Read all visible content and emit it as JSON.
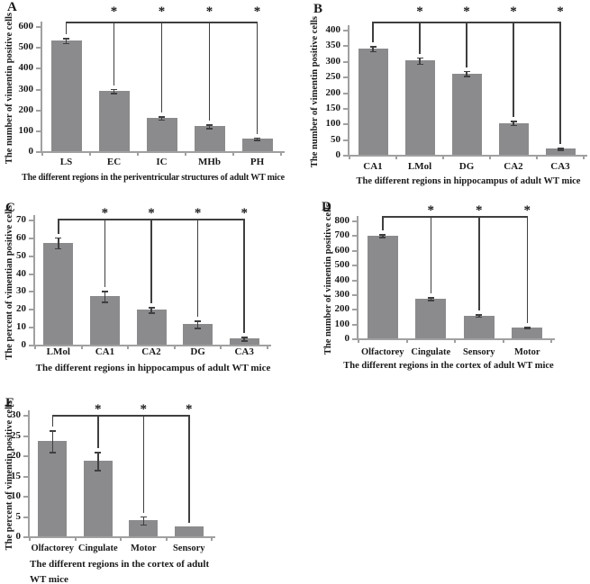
{
  "palette": {
    "bar_fill": "#8b8b8d",
    "axis": "#a0a0a0",
    "error": "#3f3f3f",
    "bracket": "#3f3f3f",
    "text": "#1a1a1a",
    "background": "#ffffff"
  },
  "chart_data": [
    {
      "id": "A",
      "type": "bar",
      "letter": "A",
      "ylabel": "The number of vimentin positive cells",
      "xlabel_lines": [
        "The different regions in the periventricular structures of adult WT mice"
      ],
      "categories": [
        "LS",
        "EC",
        "IC",
        "MHb",
        "PH"
      ],
      "values": [
        530,
        290,
        160,
        120,
        60
      ],
      "errors": [
        12,
        10,
        8,
        8,
        5
      ],
      "ylim": [
        0,
        600
      ],
      "ytick": 100,
      "grid": false,
      "legend": false,
      "significance": {
        "symbol": "*",
        "baseline": "LS",
        "targets": [
          "EC",
          "IC",
          "MHb",
          "PH"
        ]
      }
    },
    {
      "id": "B",
      "type": "bar",
      "letter": "B",
      "ylabel": "The number of vimentin positive cells",
      "xlabel_lines": [
        "The different regions in hippocampus of adult WT mice"
      ],
      "categories": [
        "CA1",
        "LMol",
        "DG",
        "CA2",
        "CA3"
      ],
      "values": [
        340,
        302,
        260,
        102,
        20
      ],
      "errors": [
        8,
        10,
        8,
        7,
        3
      ],
      "ylim": [
        0,
        400
      ],
      "ytick": 50,
      "grid": false,
      "legend": false,
      "significance": {
        "symbol": "*",
        "baseline": "CA1",
        "targets": [
          "LMol",
          "DG",
          "CA2",
          "CA3"
        ]
      }
    },
    {
      "id": "C",
      "type": "bar",
      "letter": "C",
      "ylabel": "The percent of vimentian positive cells",
      "xlabel_lines": [
        "The different regions in hippocampus of adult WT mice"
      ],
      "categories": [
        "LMol",
        "CA1",
        "CA2",
        "DG",
        "CA3"
      ],
      "values": [
        57,
        27,
        19.5,
        11.5,
        3.5
      ],
      "errors": [
        3,
        3,
        1.5,
        2,
        1
      ],
      "ylim": [
        0,
        70
      ],
      "ytick": 10,
      "grid": false,
      "legend": false,
      "significance": {
        "symbol": "*",
        "baseline": "LMol",
        "targets": [
          "CA1",
          "CA2",
          "DG",
          "CA3"
        ]
      }
    },
    {
      "id": "D",
      "type": "bar",
      "letter": "D",
      "ylabel": "The number of vimentin positive cells",
      "xlabel_lines": [
        "The different regions in the cortex of adult WT mice"
      ],
      "categories": [
        "Olfactorey",
        "Cingulate",
        "Sensory",
        "Motor"
      ],
      "values": [
        698,
        270,
        155,
        75
      ],
      "errors": [
        10,
        8,
        8,
        4
      ],
      "ylim": [
        0,
        800
      ],
      "ytick": 100,
      "grid": false,
      "legend": false,
      "significance": {
        "symbol": "*",
        "baseline": "Olfactorey",
        "targets": [
          "Cingulate",
          "Sensory",
          "Motor"
        ]
      }
    },
    {
      "id": "E",
      "type": "bar",
      "letter": "E",
      "ylabel": "The percent of vimentin positive cells",
      "xlabel_lines": [
        "The different regions in the cortex of adult",
        "WT mice"
      ],
      "categories": [
        "Olfactorey",
        "Cingulate",
        "Motor",
        "Sensory"
      ],
      "values": [
        23.5,
        18.6,
        3.9,
        2.4
      ],
      "errors": [
        2.7,
        2.2,
        1,
        0
      ],
      "ylim": [
        0,
        30
      ],
      "ytick": 5,
      "grid": false,
      "legend": false,
      "significance": {
        "symbol": "*",
        "baseline": "Olfactorey",
        "targets": [
          "Cingulate",
          "Motor",
          "Sensory"
        ]
      }
    }
  ]
}
